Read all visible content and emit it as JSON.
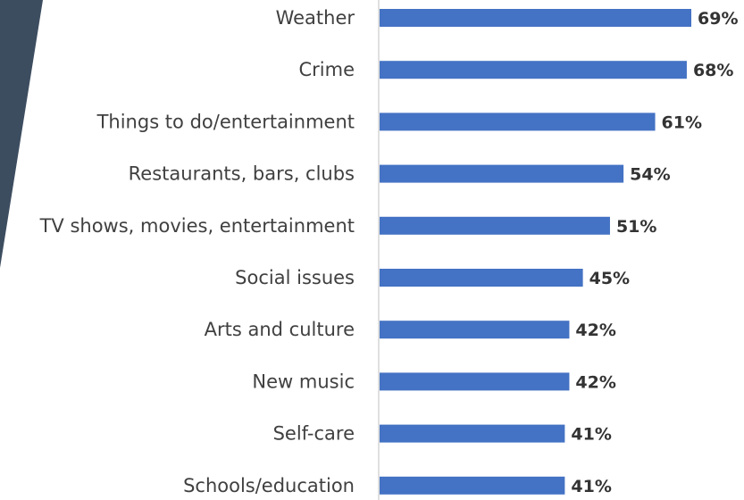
{
  "chart_data": {
    "type": "bar",
    "orientation": "horizontal",
    "categories": [
      "Weather",
      "Crime",
      "Things to do/entertainment",
      "Restaurants, bars, clubs",
      "TV shows, movies, entertainment",
      "Social issues",
      "Arts and culture",
      "New music",
      "Self-care",
      "Schools/education"
    ],
    "values": [
      69,
      68,
      61,
      54,
      51,
      45,
      42,
      42,
      41,
      41
    ],
    "value_labels": [
      "69%",
      "68%",
      "61%",
      "54%",
      "51%",
      "45%",
      "42%",
      "42%",
      "41%",
      "41%"
    ],
    "title": "",
    "xlabel": "",
    "ylabel": "",
    "xlim": [
      0,
      69
    ],
    "grid": false,
    "legend": "none",
    "colors": {
      "bar": "#4472c4",
      "axis": "#bfbfbf",
      "category_text": "#404040",
      "value_text": "#333333",
      "decoration": "#3d4d60"
    }
  }
}
